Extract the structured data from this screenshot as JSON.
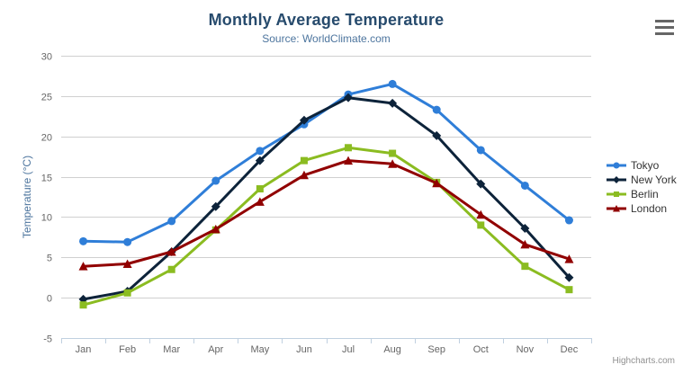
{
  "chart_data": {
    "type": "line",
    "title": "Monthly Average Temperature",
    "subtitle": "Source: WorldClimate.com",
    "categories": [
      "Jan",
      "Feb",
      "Mar",
      "Apr",
      "May",
      "Jun",
      "Jul",
      "Aug",
      "Sep",
      "Oct",
      "Nov",
      "Dec"
    ],
    "xlabel": "",
    "ylabel": "Temperature (°C)",
    "ylim": [
      -5,
      30
    ],
    "ytick_step": 5,
    "grid": true,
    "legend_position": "right",
    "series": [
      {
        "name": "Tokyo",
        "color": "#2f7ed8",
        "marker": "circle",
        "values": [
          7.0,
          6.9,
          9.5,
          14.5,
          18.2,
          21.5,
          25.2,
          26.5,
          23.3,
          18.3,
          13.9,
          9.6
        ]
      },
      {
        "name": "New York",
        "color": "#0d233a",
        "marker": "diamond",
        "values": [
          -0.2,
          0.8,
          5.7,
          11.3,
          17.0,
          22.0,
          24.8,
          24.1,
          20.1,
          14.1,
          8.6,
          2.5
        ]
      },
      {
        "name": "Berlin",
        "color": "#8bbc21",
        "marker": "square",
        "values": [
          -0.9,
          0.6,
          3.5,
          8.4,
          13.5,
          17.0,
          18.6,
          17.9,
          14.3,
          9.0,
          3.9,
          1.0
        ]
      },
      {
        "name": "London",
        "color": "#910000",
        "marker": "triangle-up",
        "values": [
          3.9,
          4.2,
          5.7,
          8.5,
          11.9,
          15.2,
          17.0,
          16.6,
          14.2,
          10.3,
          6.6,
          4.8
        ]
      }
    ]
  },
  "export_menu": {
    "icon": "hamburger-menu-icon"
  },
  "credits": {
    "text": "Highcharts.com"
  },
  "colors": {
    "title": "#274b6d",
    "subtitle": "#4d759e",
    "axis_title": "#4d759e",
    "axis_labels": "#666666",
    "grid": "#d0d0d0",
    "axis_line": "#c0d0e0",
    "legend_text": "#333333",
    "credit": "#909090",
    "menu_icon": "#666666"
  }
}
